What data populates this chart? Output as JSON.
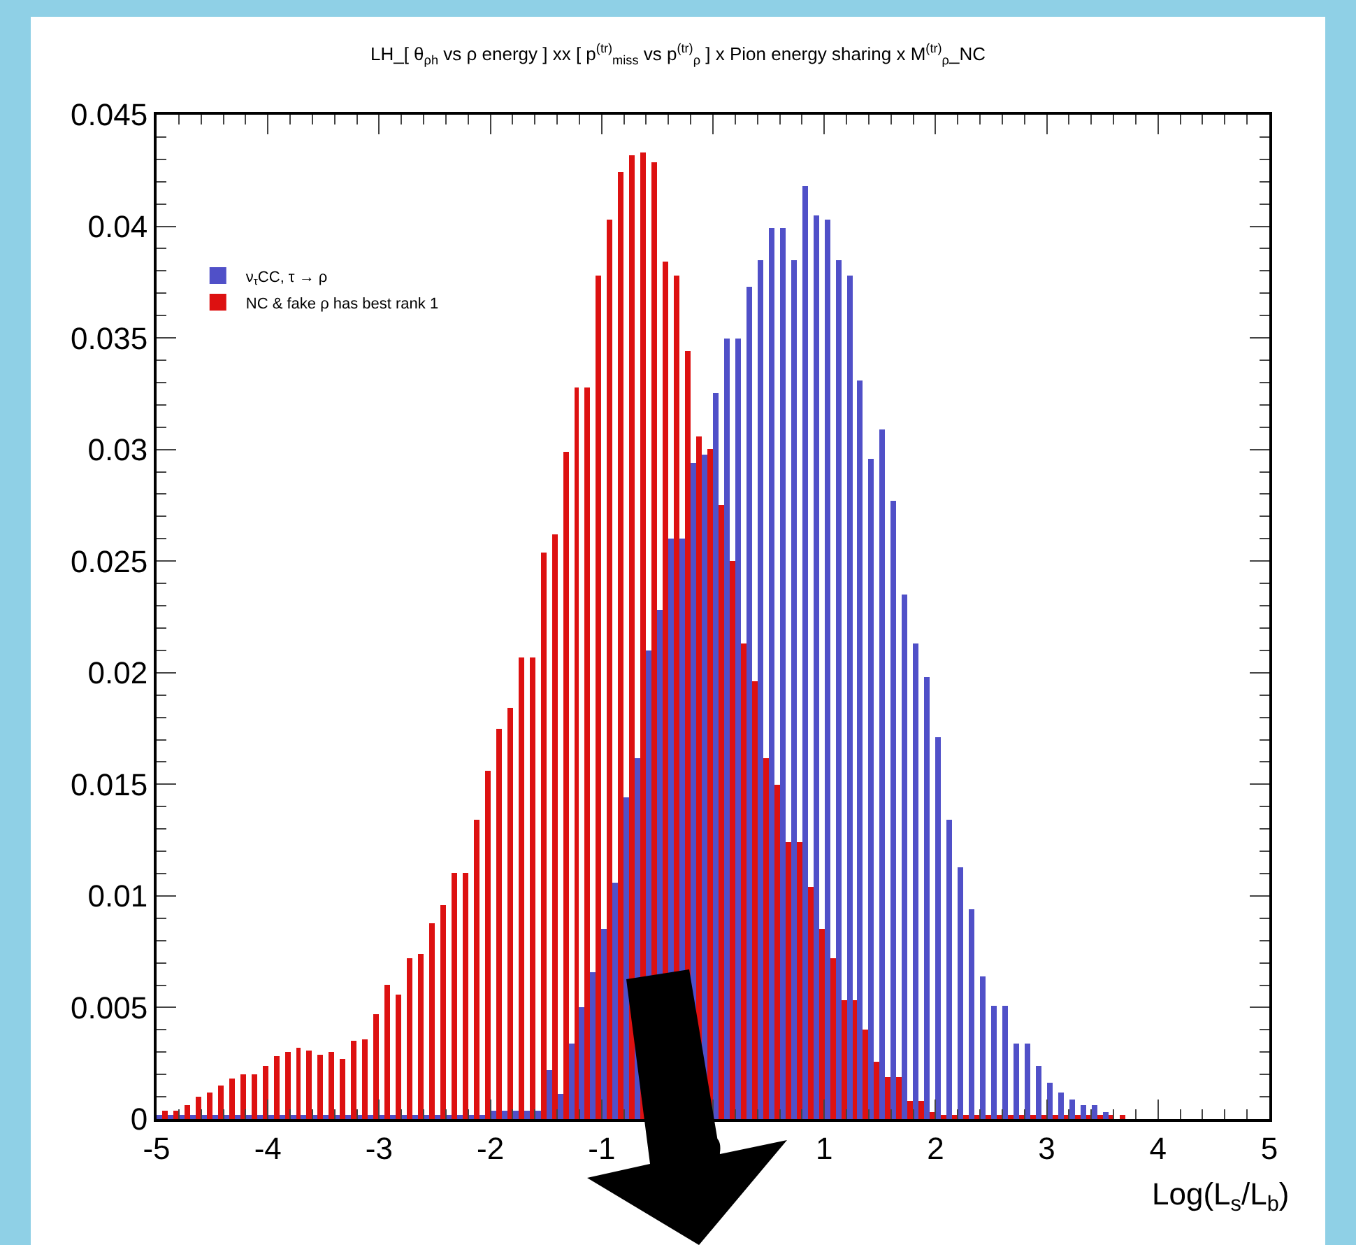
{
  "chart_data": {
    "type": "histogram",
    "title": "LH_[ θ$_{ρh}$ vs ρ energy ] xx [ p$^{(tr)}$$_{miss}$ vs p$^{(tr)}$$_{ρ}$ ] x Pion energy sharing x M$^{(tr)}$$_{ρ}$_NC",
    "xlabel": "Log(L$_{s}$/L$_{b}$)",
    "bins": [
      -5,
      -4.9,
      -4.8,
      -4.7,
      -4.6,
      -4.5,
      -4.4,
      -4.3,
      -4.2,
      -4.1,
      -4,
      -3.9,
      -3.8,
      -3.7,
      -3.6,
      -3.5,
      -3.4,
      -3.3,
      -3.2,
      -3.1,
      -3,
      -2.9,
      -2.8,
      -2.7,
      -2.6,
      -2.5,
      -2.4,
      -2.3,
      -2.2,
      -2.1,
      -2,
      -1.9,
      -1.8,
      -1.7,
      -1.6,
      -1.5,
      -1.4,
      -1.3,
      -1.2,
      -1.1,
      -1,
      -0.9,
      -0.8,
      -0.7,
      -0.6,
      -0.5,
      -0.4,
      -0.3,
      -0.2,
      -0.1,
      0,
      0.1,
      0.2,
      0.3,
      0.4,
      0.5,
      0.6,
      0.7,
      0.8,
      0.9,
      1,
      1.1,
      1.2,
      1.3,
      1.4,
      1.5,
      1.6,
      1.7,
      1.8,
      1.9,
      2,
      2.1,
      2.2,
      2.3,
      2.4,
      2.5,
      2.6,
      2.7,
      2.8,
      2.9,
      3,
      3.1,
      3.2,
      3.3,
      3.4,
      3.5,
      3.6,
      3.7
    ],
    "series": [
      {
        "name": "ν$_{τ}$CC, τ → ρ",
        "color": "#5050c8",
        "values": [
          0.0002,
          0.0002,
          0.0002,
          0.0002,
          0.0002,
          0.0002,
          0.0002,
          0.0002,
          0.0002,
          0.0002,
          0.0002,
          0.0002,
          0.0002,
          0.0002,
          0.0002,
          0.0002,
          0.0002,
          0.0002,
          0.0002,
          0.0002,
          0.0002,
          0.0002,
          0.0002,
          0.0002,
          0.0002,
          0.0002,
          0.0002,
          0.0002,
          0.0002,
          0.0002,
          0.0004,
          0.0004,
          0.0004,
          0.0004,
          0.0004,
          0.0022,
          0.0011,
          0.0034,
          0.005,
          0.0066,
          0.0085,
          0.0106,
          0.0144,
          0.0162,
          0.021,
          0.0228,
          0.026,
          0.026,
          0.0294,
          0.0298,
          0.0325,
          0.035,
          0.035,
          0.0373,
          0.0385,
          0.0399,
          0.0399,
          0.0385,
          0.0418,
          0.0405,
          0.0403,
          0.0385,
          0.0378,
          0.0331,
          0.0296,
          0.0309,
          0.0277,
          0.0235,
          0.0213,
          0.0198,
          0.0171,
          0.0134,
          0.0113,
          0.0094,
          0.0064,
          0.0051,
          0.0051,
          0.0034,
          0.0034,
          0.0024,
          0.0016,
          0.0012,
          0.0009,
          0.0006,
          0.0006,
          0.0003,
          0
        ]
      },
      {
        "name": "NC & fake ρ has best rank 1",
        "color": "#dd1111",
        "values": [
          0.0004,
          0.0004,
          0.0006,
          0.001,
          0.0012,
          0.0015,
          0.0018,
          0.002,
          0.002,
          0.0024,
          0.0028,
          0.003,
          0.0032,
          0.0031,
          0.0029,
          0.003,
          0.0027,
          0.0035,
          0.0036,
          0.0047,
          0.006,
          0.0056,
          0.0072,
          0.0074,
          0.0088,
          0.0096,
          0.011,
          0.011,
          0.0134,
          0.0156,
          0.0175,
          0.0184,
          0.0207,
          0.0207,
          0.0254,
          0.0262,
          0.0299,
          0.0328,
          0.0328,
          0.0378,
          0.0403,
          0.0424,
          0.0432,
          0.0433,
          0.0429,
          0.0384,
          0.0378,
          0.0344,
          0.0306,
          0.03,
          0.0275,
          0.025,
          0.0213,
          0.0196,
          0.0162,
          0.015,
          0.0124,
          0.0124,
          0.0104,
          0.0085,
          0.0072,
          0.0053,
          0.0053,
          0.004,
          0.0026,
          0.0019,
          0.0019,
          0.0008,
          0.0008,
          0.0003,
          0.0002,
          0.0002,
          0.0002,
          0.0002,
          0.0002,
          0.0002,
          0.0002,
          0.0002,
          0.0002,
          0.0002,
          0.0002,
          0.0002,
          0.0002,
          0.0002,
          0.0002,
          0.0002,
          0.0002
        ]
      }
    ],
    "xlim": [
      -5,
      5
    ],
    "ylim": [
      0,
      0.045
    ],
    "xticks": [
      -5,
      -4,
      -3,
      -2,
      -1,
      0,
      1,
      2,
      3,
      4,
      5
    ],
    "yticks": [
      0,
      0.005,
      0.01,
      0.015,
      0.02,
      0.025,
      0.03,
      0.035,
      0.04,
      0.045
    ],
    "legend": "top left"
  }
}
